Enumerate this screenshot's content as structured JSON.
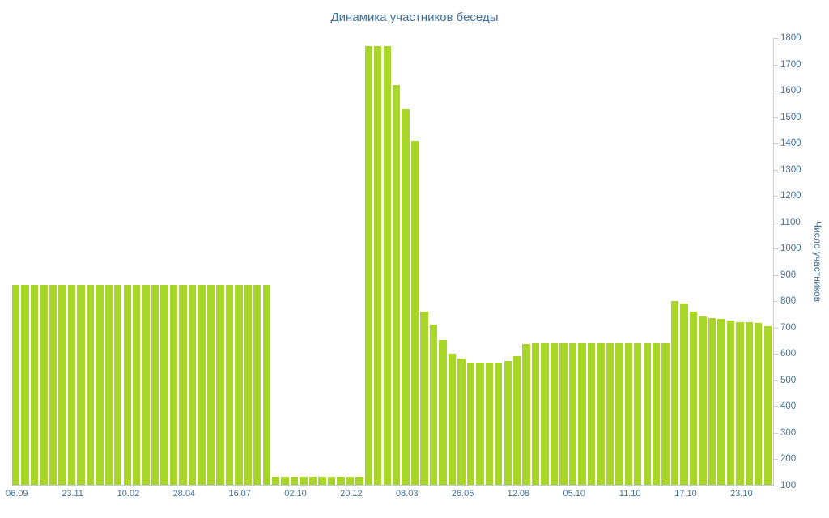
{
  "chart_data": {
    "type": "bar",
    "title": "Динамика участников беседы",
    "xlabel": "",
    "ylabel": "Число участников",
    "ylim": [
      100,
      1800
    ],
    "grid": "striped-horizontal-bands",
    "legend": "none",
    "y_axis_side": "right",
    "y_ticks": [
      100,
      200,
      300,
      400,
      500,
      600,
      700,
      800,
      900,
      1000,
      1100,
      1200,
      1300,
      1400,
      1500,
      1600,
      1700,
      1800
    ],
    "x_tick_labels": [
      "06.09",
      "23.11",
      "10.02",
      "28.04",
      "16.07",
      "02.10",
      "20.12",
      "08.03",
      "26.05",
      "12.08",
      "05.10",
      "11.10",
      "17.10",
      "23.10"
    ],
    "x_tick_bar_indices": [
      0,
      6,
      12,
      18,
      24,
      30,
      36,
      42,
      48,
      54,
      60,
      66,
      72,
      78
    ],
    "values": [
      860,
      860,
      860,
      860,
      860,
      860,
      860,
      860,
      860,
      860,
      860,
      860,
      860,
      860,
      860,
      860,
      860,
      860,
      860,
      860,
      860,
      860,
      860,
      860,
      860,
      860,
      860,
      860,
      130,
      130,
      130,
      130,
      130,
      130,
      130,
      130,
      130,
      130,
      1770,
      1770,
      1770,
      1620,
      1530,
      1410,
      760,
      710,
      650,
      600,
      580,
      565,
      565,
      565,
      565,
      570,
      590,
      635,
      640,
      640,
      640,
      638,
      640,
      640,
      640,
      640,
      638,
      640,
      640,
      640,
      640,
      640,
      640,
      800,
      790,
      760,
      740,
      735,
      730,
      725,
      720,
      720,
      715,
      705
    ],
    "colors": {
      "bar": "#a8d628",
      "text": "#40739e",
      "axis": "#bccfdc",
      "stripe": "#f5f5f5",
      "background": "#ffffff"
    }
  }
}
